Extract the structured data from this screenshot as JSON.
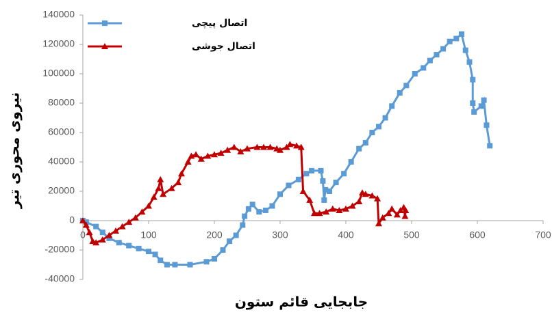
{
  "chart_data": {
    "type": "line",
    "x_label": "جابجایی قائم ستون",
    "y_label": "نیروی محوری تیر",
    "xlim": [
      0,
      700
    ],
    "xticks": [
      0,
      100,
      200,
      300,
      400,
      500,
      600,
      700
    ],
    "ylim": [
      -40000,
      140000
    ],
    "yticks": [
      -40000,
      -20000,
      0,
      20000,
      40000,
      60000,
      80000,
      100000,
      120000,
      140000
    ],
    "legend": "top-left",
    "series": [
      {
        "name": "اتصال پیچی",
        "color": "#5b9bd5",
        "marker": "square",
        "x": [
          0,
          5,
          20,
          30,
          40,
          55,
          70,
          85,
          100,
          110,
          118,
          128,
          140,
          163,
          188,
          200,
          213,
          223,
          233,
          243,
          246,
          252,
          258,
          268,
          278,
          288,
          300,
          313,
          328,
          340,
          348,
          362,
          365,
          367,
          369,
          375,
          385,
          397,
          408,
          420,
          430,
          440,
          450,
          460,
          470,
          482,
          492,
          505,
          518,
          528,
          538,
          548,
          558,
          568,
          576,
          582,
          588,
          593,
          593,
          595,
          606,
          610,
          614,
          619
        ],
        "values": [
          0,
          -1000,
          -4000,
          -8000,
          -12000,
          -15000,
          -17000,
          -19000,
          -21000,
          -23000,
          -27000,
          -30000,
          -30000,
          -30000,
          -28000,
          -26000,
          -20000,
          -14000,
          -10000,
          -3000,
          3000,
          8000,
          11000,
          6000,
          7000,
          10000,
          18000,
          24000,
          28000,
          32000,
          34000,
          34000,
          27000,
          14000,
          21000,
          20000,
          26000,
          32000,
          40000,
          49000,
          53000,
          60000,
          64000,
          70000,
          78000,
          87000,
          92000,
          100000,
          104000,
          109000,
          113000,
          117000,
          122000,
          124000,
          127000,
          116000,
          108000,
          96000,
          80000,
          74000,
          78000,
          82000,
          65000,
          51000
        ]
      },
      {
        "name": "اتصال جوشی",
        "color": "#c00000",
        "marker": "triangle",
        "x": [
          0,
          5,
          10,
          15,
          20,
          30,
          40,
          50,
          60,
          70,
          80,
          90,
          100,
          108,
          115,
          118,
          122,
          135,
          145,
          150,
          160,
          165,
          172,
          180,
          190,
          200,
          210,
          220,
          230,
          240,
          250,
          265,
          275,
          285,
          295,
          300,
          310,
          315,
          325,
          332,
          335,
          345,
          352,
          360,
          370,
          380,
          390,
          400,
          410,
          420,
          425,
          430,
          440,
          448,
          450,
          456,
          465,
          470,
          478,
          483,
          488,
          490,
          491
        ],
        "values": [
          0,
          -3000,
          -8000,
          -14000,
          -15000,
          -13000,
          -10000,
          -7000,
          -4000,
          -1000,
          2000,
          6000,
          10000,
          16000,
          22000,
          28000,
          18000,
          22000,
          26000,
          32000,
          40000,
          44000,
          45000,
          42000,
          44000,
          45000,
          46000,
          48000,
          50000,
          47000,
          49000,
          50000,
          50000,
          50000,
          49000,
          48000,
          50000,
          52000,
          51000,
          50000,
          20000,
          14000,
          5000,
          5000,
          6000,
          8000,
          7000,
          8000,
          10000,
          13000,
          19000,
          18000,
          17000,
          15000,
          -2000,
          2000,
          5000,
          8000,
          4000,
          7000,
          9000,
          3000,
          7000
        ]
      }
    ]
  }
}
